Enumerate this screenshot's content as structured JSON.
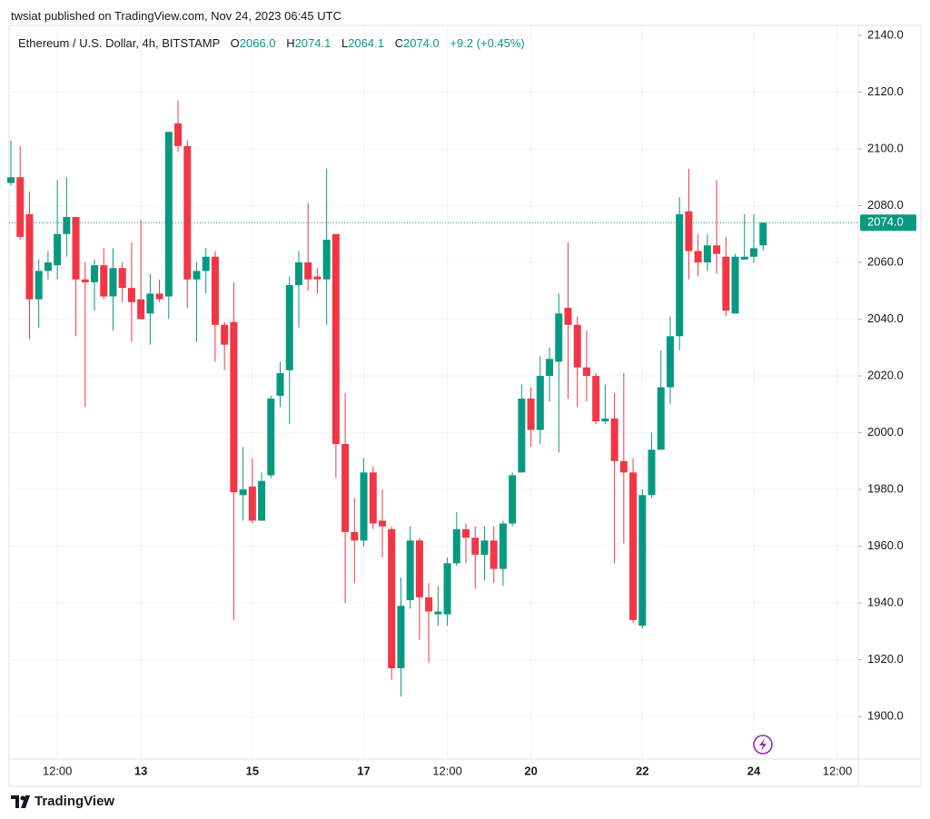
{
  "header": {
    "published": "twsiat published on TradingView.com, Nov 24, 2023 06:45 UTC"
  },
  "footer": {
    "brand": "TradingView"
  },
  "chart_data": {
    "type": "candlestick",
    "legend": {
      "symbol": "Ethereum / U.S. Dollar, 4h, BITSTAMP",
      "open_key": "O",
      "open": "2066.0",
      "high_key": "H",
      "high": "2074.1",
      "low_key": "L",
      "low": "2064.1",
      "close_key": "C",
      "close": "2074.0",
      "change": "+9.2 (+0.45%)"
    },
    "up_color": "#089981",
    "down_color": "#f23645",
    "grid": true,
    "categories": [
      null,
      null,
      null,
      null,
      null,
      "12:00",
      null,
      null,
      null,
      null,
      null,
      null,
      null,
      null,
      "13",
      null,
      null,
      null,
      null,
      null,
      null,
      null,
      null,
      null,
      null,
      null,
      "15",
      null,
      null,
      null,
      null,
      null,
      null,
      null,
      null,
      null,
      null,
      null,
      "17",
      null,
      null,
      null,
      null,
      null,
      null,
      null,
      null,
      "12:00",
      null,
      null,
      null,
      null,
      null,
      null,
      null,
      null,
      "20",
      null,
      null,
      null,
      null,
      null,
      null,
      null,
      null,
      null,
      null,
      null,
      "22",
      null,
      null,
      null,
      null,
      null,
      null,
      null,
      null,
      null,
      null,
      null,
      "24",
      null,
      null,
      null,
      null,
      null,
      null,
      null,
      null,
      "12:00"
    ],
    "open": [
      2088,
      2090,
      2077,
      2047,
      2057,
      2059,
      2070,
      2076,
      2054,
      2053,
      2059,
      2048,
      2058,
      2051,
      2047,
      2042,
      2049,
      2048,
      2109,
      2101,
      2054,
      2057,
      2062,
      2038,
      2039,
      1978,
      1981,
      1969,
      1985,
      2013,
      2022,
      2052,
      2060,
      2055,
      2054,
      2070,
      1996,
      1965,
      1962,
      1986,
      1969,
      1966,
      1917,
      1941,
      1962,
      1942,
      1936,
      1936,
      1954,
      1966,
      1963,
      1957,
      1962,
      1952,
      1968,
      1986,
      2012,
      2001,
      2020,
      2025,
      2044,
      2038,
      2023,
      2020,
      2004,
      2005,
      1990,
      1986,
      1932,
      1978,
      1994,
      2016,
      2034,
      2078,
      2064,
      2060,
      2066,
      2062,
      2042,
      2061,
      2062,
      2066.0,
      null,
      null,
      null,
      null,
      null,
      null,
      null,
      null
    ],
    "high": [
      2103,
      2101,
      2085,
      2061,
      2064,
      2089,
      2090,
      2076,
      2060,
      2061,
      2065,
      2065,
      2060,
      2067,
      2075,
      2056,
      2054,
      2106,
      2117,
      2103,
      2060,
      2065,
      2064,
      2039,
      2053,
      1995,
      1991,
      1986,
      2013,
      2025,
      2055,
      2064,
      2081,
      2058,
      2093,
      2070,
      2014,
      1977,
      1991,
      1988,
      1980,
      1967,
      1949,
      1967,
      1963,
      1947,
      1946,
      1956,
      1972,
      1968,
      1967,
      1967,
      1967,
      1969,
      1986,
      2017,
      2016,
      2027,
      2030,
      2049,
      2067,
      2041,
      2036,
      2021,
      2017,
      2014,
      2021,
      1991,
      1980,
      2000,
      2029,
      2041,
      2083,
      2093,
      2070,
      2070,
      2089,
      2069,
      2063,
      2077,
      2077,
      2074.1,
      null,
      null,
      null,
      null,
      null,
      null,
      null,
      null
    ],
    "low": [
      2087,
      2068,
      2033,
      2037,
      2054,
      2054,
      2062,
      2034,
      2009,
      2043,
      2047,
      2036,
      2046,
      2032,
      2040,
      2031,
      2046,
      2040,
      2099,
      2044,
      2032,
      2049,
      2025,
      2022,
      1934,
      1969,
      1968,
      1969,
      1984,
      2009,
      2003,
      2037,
      2050,
      2049,
      2038,
      1984,
      1940,
      1947,
      1960,
      1966,
      1956,
      1913,
      1907,
      1938,
      1927,
      1919,
      1932,
      1932,
      1953,
      1954,
      1945,
      1948,
      1947,
      1946,
      1967,
      1986,
      1995,
      1996,
      2011,
      1993,
      2012,
      2009,
      2011,
      2003,
      2003,
      1954,
      1961,
      1933,
      1931,
      1977,
      1994,
      2010,
      2029,
      2054,
      2055,
      2057,
      2056,
      2041,
      2042,
      2061,
      2060,
      2064.1,
      null,
      null,
      null,
      null,
      null,
      null,
      null,
      null
    ],
    "close": [
      2090,
      2069,
      2047,
      2057,
      2060,
      2070,
      2076,
      2054,
      2053,
      2059,
      2048,
      2058,
      2051,
      2046,
      2040,
      2049,
      2047,
      2106,
      2101,
      2054,
      2057,
      2062,
      2038,
      2031,
      1979,
      1980,
      1969,
      1983,
      2012,
      2021,
      2052,
      2060,
      2054,
      2054,
      2068,
      1996,
      1965,
      1962,
      1986,
      1968,
      1967,
      1917,
      1939,
      1962,
      1942,
      1937,
      1937,
      1954,
      1966,
      1963,
      1957,
      1962,
      1952,
      1968,
      1985,
      2012,
      2001,
      2020,
      2026,
      2042,
      2038,
      2023,
      2020,
      2004,
      2005,
      1990,
      1986,
      1934,
      1978,
      1994,
      2016,
      2034,
      2077,
      2064,
      2060,
      2066,
      2063,
      2043,
      2062,
      2062,
      2065,
      2074.0,
      null,
      null,
      null,
      null,
      null,
      null,
      null,
      null
    ],
    "price_line": {
      "value": 2074.0,
      "label": "2074.0"
    },
    "ylim": [
      1885,
      2143.5
    ],
    "yticks": [
      {
        "value": 1900,
        "label": "1900.0"
      },
      {
        "value": 1920,
        "label": "1920.0"
      },
      {
        "value": 1940,
        "label": "1940.0"
      },
      {
        "value": 1960,
        "label": "1960.0"
      },
      {
        "value": 1980,
        "label": "1980.0"
      },
      {
        "value": 2000,
        "label": "2000.0"
      },
      {
        "value": 2020,
        "label": "2020.0"
      },
      {
        "value": 2040,
        "label": "2040.0"
      },
      {
        "value": 2060,
        "label": "2060.0"
      },
      {
        "value": 2080,
        "label": "2080.0"
      },
      {
        "value": 2100,
        "label": "2100.0"
      },
      {
        "value": 2120,
        "label": "2120.0"
      },
      {
        "value": 2140,
        "label": "2140.0"
      }
    ]
  }
}
